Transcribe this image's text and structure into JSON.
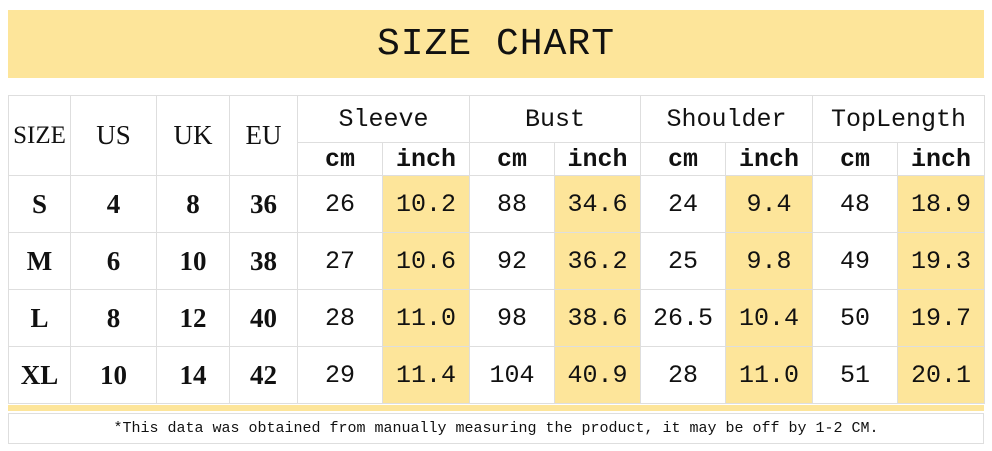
{
  "title": "SIZE CHART",
  "headers": {
    "size": "SIZE",
    "us": "US",
    "uk": "UK",
    "eu": "EU",
    "groups": [
      "Sleeve",
      "Bust",
      "Shoulder",
      "TopLength"
    ],
    "cm": "cm",
    "inch": "inch"
  },
  "rows": [
    {
      "size": "S",
      "us": "4",
      "uk": "8",
      "eu": "36",
      "vals": [
        "26",
        "10.2",
        "88",
        "34.6",
        "24",
        "9.4",
        "48",
        "18.9"
      ]
    },
    {
      "size": "M",
      "us": "6",
      "uk": "10",
      "eu": "38",
      "vals": [
        "27",
        "10.6",
        "92",
        "36.2",
        "25",
        "9.8",
        "49",
        "19.3"
      ]
    },
    {
      "size": "L",
      "us": "8",
      "uk": "12",
      "eu": "40",
      "vals": [
        "28",
        "11.0",
        "98",
        "38.6",
        "26.5",
        "10.4",
        "50",
        "19.7"
      ]
    },
    {
      "size": "XL",
      "us": "10",
      "uk": "14",
      "eu": "42",
      "vals": [
        "29",
        "11.4",
        "104",
        "40.9",
        "28",
        "11.0",
        "51",
        "20.1"
      ]
    }
  ],
  "note": "*This data was obtained from manually measuring the product, it may be off by 1-2 CM.",
  "colors": {
    "highlight": "#fde59a",
    "border": "#dedede"
  }
}
